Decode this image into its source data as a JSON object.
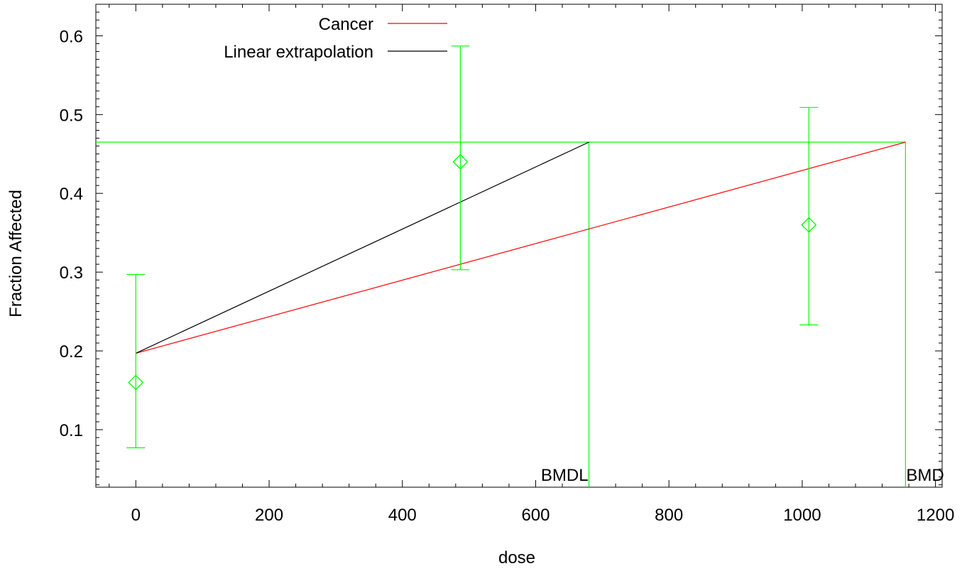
{
  "chart_data": {
    "type": "line",
    "xlabel": "dose",
    "ylabel": "Fraction Affected",
    "xlim": [
      -60,
      1210
    ],
    "ylim": [
      0.027,
      0.64
    ],
    "xticks": [
      0,
      200,
      400,
      600,
      800,
      1000,
      1200
    ],
    "xtick_labels": [
      "0",
      "200",
      "400",
      "600",
      "800",
      "1000",
      "1200"
    ],
    "yticks": [
      0.1,
      0.2,
      0.3,
      0.4,
      0.5,
      0.6
    ],
    "ytick_labels": [
      "0.1",
      "0.2",
      "0.3",
      "0.4",
      "0.5",
      "0.6"
    ],
    "grid": false,
    "legend_position": "top-left",
    "series": [
      {
        "name": "Cancer",
        "color": "#ff0000",
        "x": [
          0,
          1155
        ],
        "y": [
          0.197,
          0.465
        ]
      },
      {
        "name": "Linear extrapolation",
        "color": "#000000",
        "x": [
          0,
          680
        ],
        "y": [
          0.197,
          0.465
        ]
      }
    ],
    "observations": {
      "color": "#00ff00",
      "marker": "diamond",
      "x": [
        0,
        487,
        1010
      ],
      "y": [
        0.16,
        0.44,
        0.36
      ],
      "lower": [
        0.077,
        0.303,
        0.233
      ],
      "upper": [
        0.297,
        0.587,
        0.509
      ]
    },
    "bmr_level": 0.465,
    "markers": [
      {
        "label": "BMDL",
        "x": 680
      },
      {
        "label": "BMD",
        "x": 1155
      }
    ]
  }
}
